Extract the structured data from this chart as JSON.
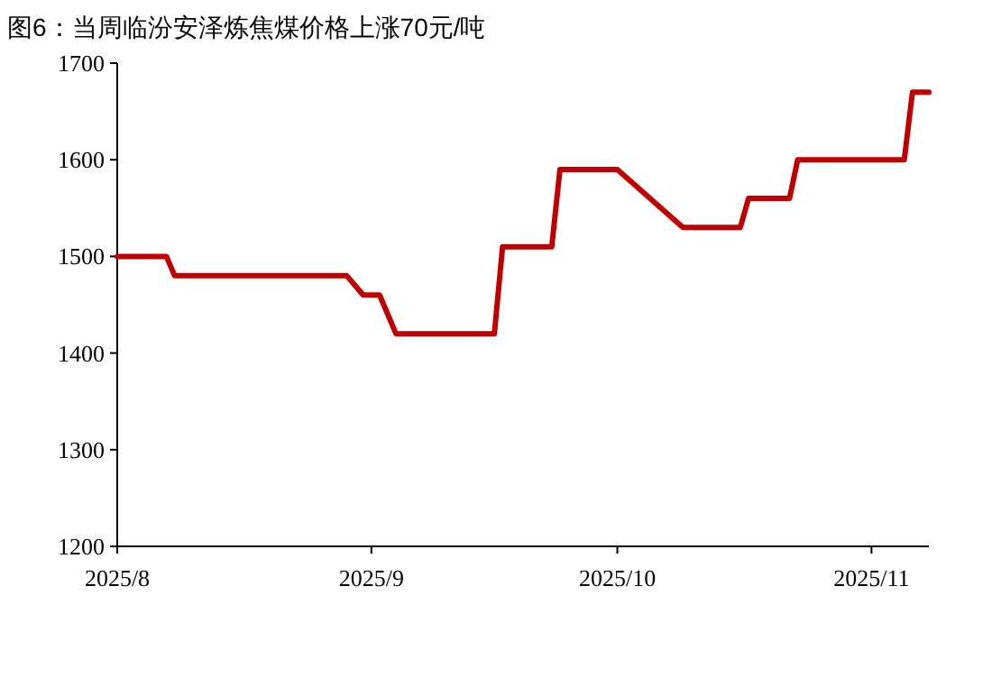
{
  "chart_data": {
    "type": "line",
    "title": "图6：当周临汾安泽炼焦煤价格上涨70元/吨",
    "series": [
      {
        "color": "#c00000",
        "x": [
          "2025-08-01",
          "2025-08-07",
          "2025-08-08",
          "2025-08-29",
          "2025-08-31",
          "2025-09-02",
          "2025-09-04",
          "2025-09-16",
          "2025-09-17",
          "2025-09-23",
          "2025-09-24",
          "2025-10-01",
          "2025-10-09",
          "2025-10-16",
          "2025-10-17",
          "2025-10-22",
          "2025-10-23",
          "2025-11-05",
          "2025-11-06",
          "2025-11-08"
        ],
        "values": [
          1500,
          1500,
          1480,
          1480,
          1460,
          1460,
          1420,
          1420,
          1510,
          1510,
          1590,
          1590,
          1530,
          1530,
          1560,
          1560,
          1600,
          1600,
          1670,
          1670
        ]
      }
    ],
    "xlim": [
      "2025-08-01",
      "2025-11-08"
    ],
    "xticks": [
      {
        "value": "2025-08-01",
        "label": "2025/8"
      },
      {
        "value": "2025-09-01",
        "label": "2025/9"
      },
      {
        "value": "2025-10-01",
        "label": "2025/10"
      },
      {
        "value": "2025-11-01",
        "label": "2025/11"
      }
    ],
    "ylim": [
      1200,
      1700
    ],
    "yticks": [
      1200,
      1300,
      1400,
      1500,
      1600,
      1700
    ],
    "grid": false,
    "marker": "none",
    "line_style": "solid"
  }
}
